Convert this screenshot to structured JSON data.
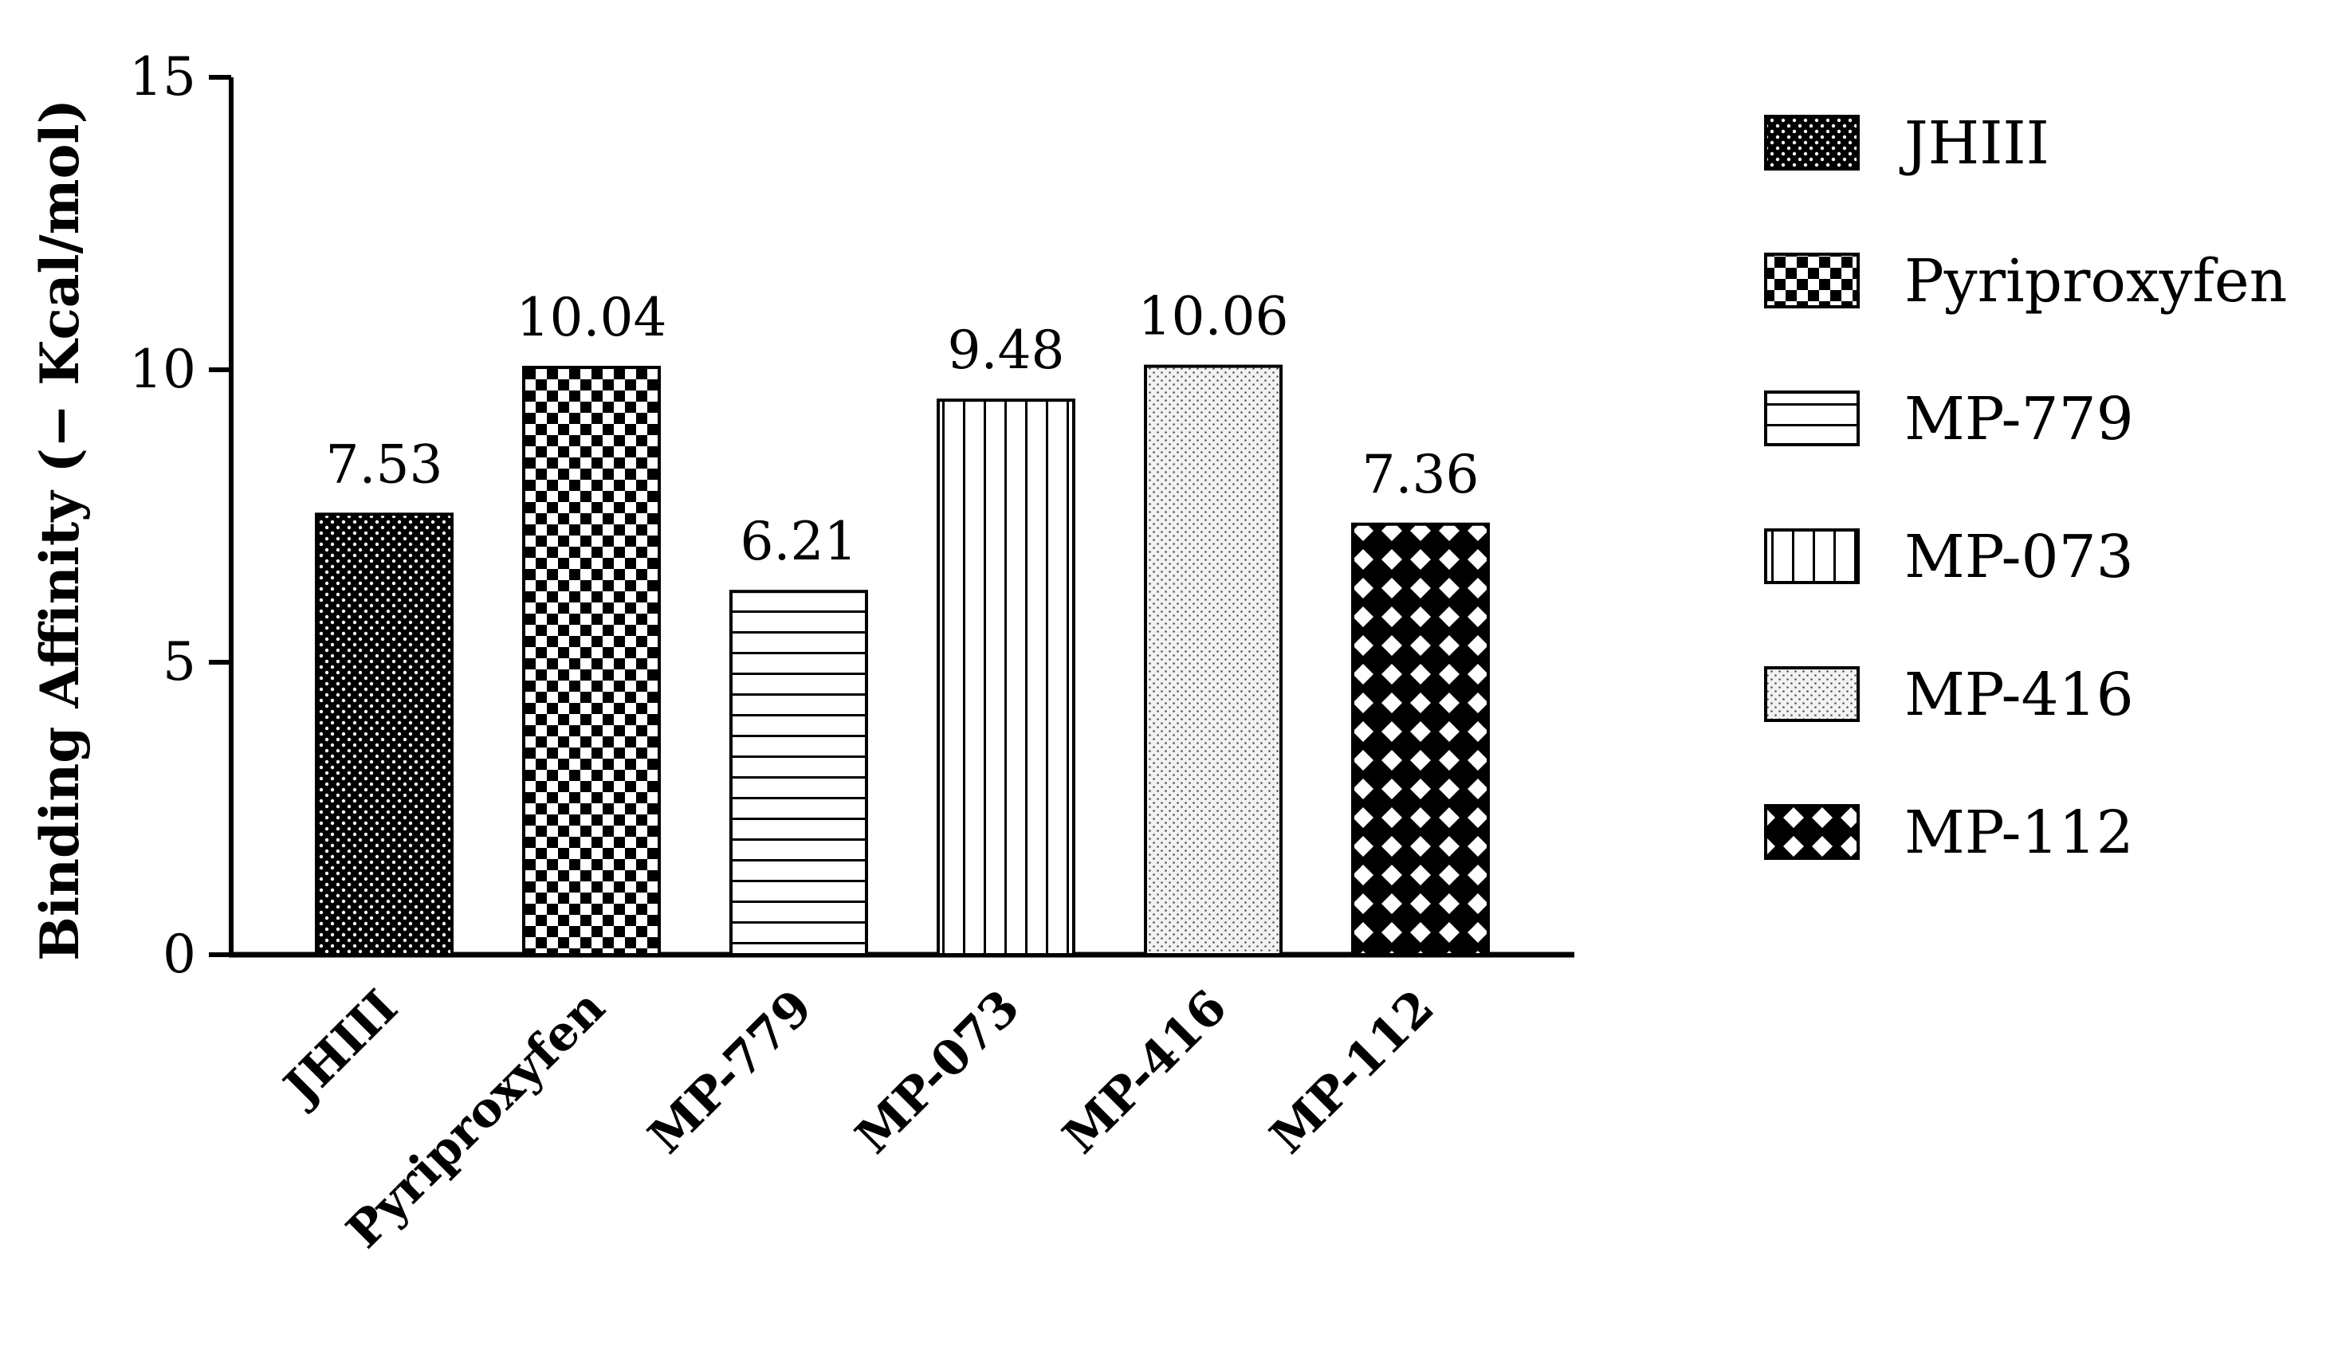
{
  "chart_data": {
    "type": "bar",
    "categories": [
      "JHIII",
      "Pyriproxyfen",
      "MP-779",
      "MP-073",
      "MP-416",
      "MP-112"
    ],
    "values": [
      7.53,
      10.04,
      6.21,
      9.48,
      10.06,
      7.36
    ],
    "value_labels": [
      "7.53",
      "10.04",
      "6.21",
      "9.48",
      "10.06",
      "7.36"
    ],
    "title": "",
    "xlabel": "",
    "ylabel": "Binding Affinity (− Kcal/mol)",
    "ylim": [
      0,
      15
    ],
    "yticks": [
      0,
      5,
      10,
      15
    ],
    "grid": false,
    "legend_position": "right",
    "legend": [
      "JHIII",
      "Pyriproxyfen",
      "MP-779",
      "MP-073",
      "MP-416",
      "MP-112"
    ],
    "patterns": [
      "dots",
      "checker",
      "horizontal-lines",
      "vertical-lines",
      "fine-dots",
      "diamond-lattice"
    ]
  }
}
